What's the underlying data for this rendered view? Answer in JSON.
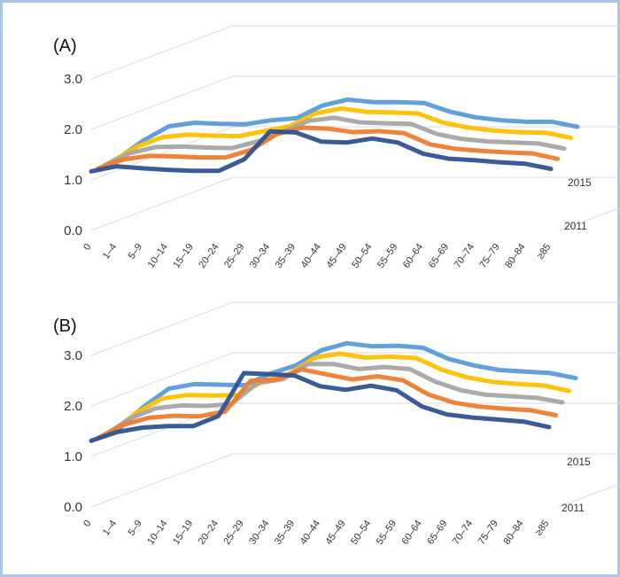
{
  "chart_data": [
    {
      "type": "line",
      "panel_label": "(A)",
      "subtype": "3d-ribbon",
      "categories": [
        "0",
        "1–4",
        "5–9",
        "10–14",
        "15–19",
        "20–24",
        "25–29",
        "30–34",
        "35–39",
        "40–44",
        "45–49",
        "50–54",
        "55–59",
        "60–64",
        "65–69",
        "70–74",
        "75–79",
        "80–84",
        "≥85"
      ],
      "yticks": [
        "0.0",
        "1.0",
        "2.0",
        "3.0"
      ],
      "ylim": [
        0,
        3
      ],
      "depth_labels": [
        "2011",
        "2015"
      ],
      "series": [
        {
          "color": "#4472c4",
          "values": [
            1.17,
            1.27,
            1.23,
            1.2,
            1.18,
            1.18,
            1.41,
            1.96,
            1.94,
            1.76,
            1.74,
            1.82,
            1.74,
            1.52,
            1.42,
            1.39,
            1.35,
            1.32,
            1.22
          ]
        },
        {
          "color": "#ed7d31",
          "values": [
            1.12,
            1.3,
            1.37,
            1.36,
            1.34,
            1.34,
            1.49,
            1.8,
            1.93,
            1.91,
            1.84,
            1.86,
            1.82,
            1.6,
            1.51,
            1.47,
            1.44,
            1.42,
            1.31
          ]
        },
        {
          "color": "#a5a5a5",
          "values": [
            1.08,
            1.32,
            1.44,
            1.45,
            1.43,
            1.42,
            1.55,
            1.75,
            1.96,
            2.02,
            1.93,
            1.91,
            1.9,
            1.7,
            1.6,
            1.55,
            1.53,
            1.51,
            1.41
          ]
        },
        {
          "color": "#ffc000",
          "values": [
            1.04,
            1.34,
            1.53,
            1.58,
            1.56,
            1.55,
            1.65,
            1.75,
            2.0,
            2.1,
            2.03,
            2.02,
            2.0,
            1.82,
            1.72,
            1.66,
            1.63,
            1.62,
            1.52
          ]
        },
        {
          "color": "#5b9bd5",
          "values": [
            1.0,
            1.36,
            1.64,
            1.71,
            1.69,
            1.68,
            1.76,
            1.8,
            2.05,
            2.17,
            2.12,
            2.12,
            2.1,
            1.93,
            1.82,
            1.76,
            1.73,
            1.73,
            1.63
          ]
        }
      ]
    },
    {
      "type": "line",
      "panel_label": "(B)",
      "subtype": "3d-ribbon",
      "categories": [
        "0",
        "1–4",
        "5–9",
        "10–14",
        "15–19",
        "20–24",
        "25–29",
        "30–34",
        "35–39",
        "40–44",
        "45–49",
        "50–54",
        "55–59",
        "60–64",
        "65–69",
        "70–74",
        "75–79",
        "80–84",
        "≥85"
      ],
      "yticks": [
        "0.0",
        "1.0",
        "2.0",
        "3.0"
      ],
      "ylim": [
        0,
        3
      ],
      "depth_labels": [
        "2011",
        "2015"
      ],
      "series": [
        {
          "color": "#4472c4",
          "values": [
            1.31,
            1.48,
            1.57,
            1.6,
            1.6,
            1.8,
            2.65,
            2.63,
            2.6,
            2.39,
            2.32,
            2.4,
            2.31,
            1.99,
            1.83,
            1.77,
            1.73,
            1.69,
            1.58
          ]
        },
        {
          "color": "#ed7d31",
          "values": [
            1.26,
            1.52,
            1.66,
            1.7,
            1.69,
            1.78,
            2.39,
            2.41,
            2.62,
            2.52,
            2.42,
            2.48,
            2.4,
            2.12,
            1.96,
            1.88,
            1.84,
            1.81,
            1.71
          ]
        },
        {
          "color": "#a5a5a5",
          "values": [
            1.21,
            1.54,
            1.74,
            1.8,
            1.79,
            1.83,
            2.24,
            2.32,
            2.62,
            2.62,
            2.52,
            2.56,
            2.52,
            2.27,
            2.1,
            2.01,
            1.98,
            1.95,
            1.86
          ]
        },
        {
          "color": "#ffc000",
          "values": [
            1.16,
            1.55,
            1.83,
            1.9,
            1.89,
            1.9,
            2.18,
            2.32,
            2.64,
            2.72,
            2.64,
            2.66,
            2.63,
            2.4,
            2.25,
            2.16,
            2.12,
            2.09,
            1.98
          ]
        },
        {
          "color": "#5b9bd5",
          "values": [
            1.1,
            1.56,
            1.92,
            2.01,
            2.0,
            1.99,
            2.22,
            2.38,
            2.68,
            2.82,
            2.76,
            2.77,
            2.73,
            2.51,
            2.38,
            2.29,
            2.26,
            2.23,
            2.13
          ]
        }
      ]
    }
  ]
}
